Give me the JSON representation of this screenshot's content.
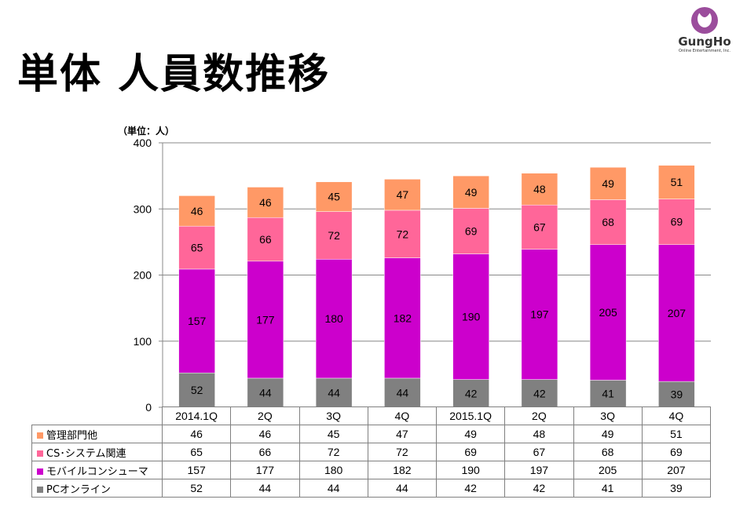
{
  "page": {
    "title": "単体 人員数推移",
    "unit_label": "（単位：人）",
    "logo": {
      "name": "GungHo",
      "subtitle": "Online Entertainment, Inc."
    }
  },
  "chart_data": {
    "type": "bar",
    "stacked": true,
    "categories": [
      "2014.1Q",
      "2Q",
      "3Q",
      "4Q",
      "2015.1Q",
      "2Q",
      "3Q",
      "4Q"
    ],
    "ylim": [
      0,
      400
    ],
    "yticks": [
      0,
      100,
      200,
      300,
      400
    ],
    "grid": true,
    "series": [
      {
        "name": "PCオンライン",
        "color": "#808080",
        "values": [
          52,
          44,
          44,
          44,
          42,
          42,
          41,
          39
        ]
      },
      {
        "name": "モバイルコンシューマ",
        "color": "#cc00cc",
        "values": [
          157,
          177,
          180,
          182,
          190,
          197,
          205,
          207
        ]
      },
      {
        "name": "CS･システム関連",
        "color": "#ff6699",
        "values": [
          65,
          66,
          72,
          72,
          69,
          67,
          68,
          69
        ]
      },
      {
        "name": "管理部門他",
        "color": "#ff9966",
        "values": [
          46,
          46,
          45,
          47,
          49,
          48,
          49,
          51
        ]
      }
    ],
    "table_row_order": [
      "管理部門他",
      "CS･システム関連",
      "モバイルコンシューマ",
      "PCオンライン"
    ]
  }
}
